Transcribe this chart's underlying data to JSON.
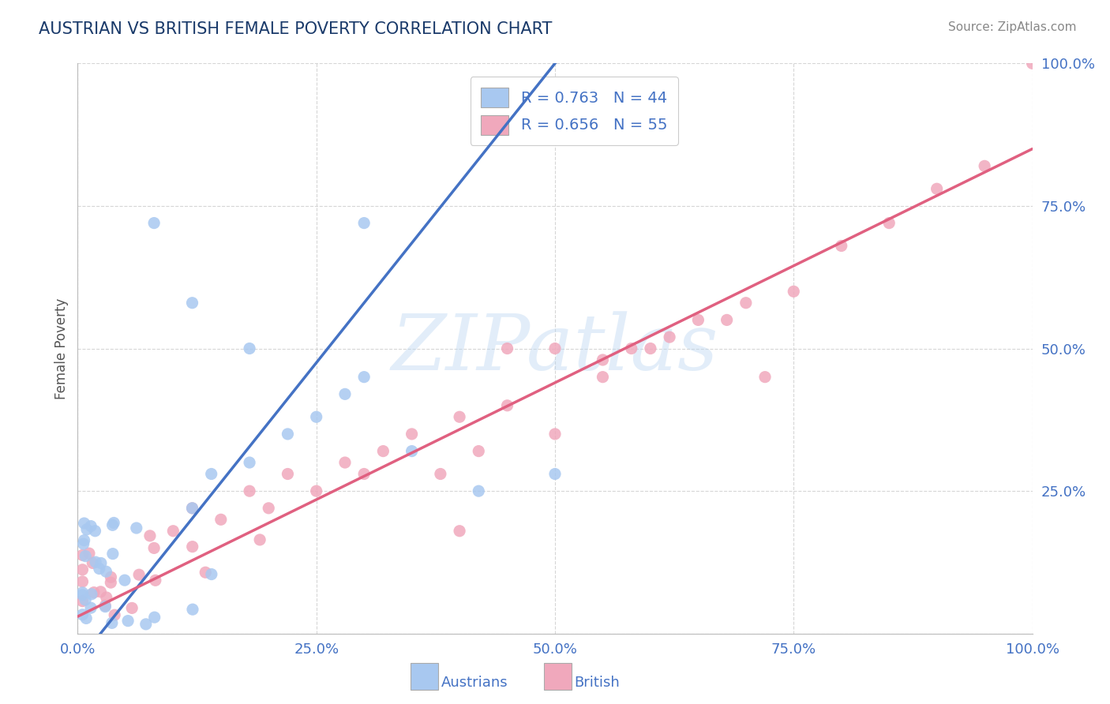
{
  "title": "AUSTRIAN VS BRITISH FEMALE POVERTY CORRELATION CHART",
  "source": "Source: ZipAtlas.com",
  "ylabel": "Female Poverty",
  "xlim": [
    0,
    1
  ],
  "ylim": [
    0,
    1
  ],
  "xticks": [
    0,
    0.25,
    0.5,
    0.75,
    1.0
  ],
  "yticks": [
    0,
    0.25,
    0.5,
    0.75,
    1.0
  ],
  "xtick_labels": [
    "0.0%",
    "25.0%",
    "50.0%",
    "75.0%",
    "100.0%"
  ],
  "ytick_labels": [
    "",
    "25.0%",
    "50.0%",
    "75.0%",
    "100.0%"
  ],
  "blue_color": "#a8c8f0",
  "pink_color": "#f0a8bc",
  "blue_line_color": "#4472c4",
  "pink_line_color": "#e06080",
  "R_austrians": 0.763,
  "N_austrians": 44,
  "R_british": 0.656,
  "N_british": 55,
  "legend_label_austrians": "Austrians",
  "legend_label_british": "British",
  "watermark": "ZIPatlas",
  "title_color": "#1a3a6a",
  "axis_label_color": "#555555",
  "tick_color": "#4472c4",
  "background_color": "#ffffff",
  "grid_color": "#cccccc",
  "blue_line_slope": 2.1,
  "blue_line_intercept": -0.05,
  "pink_line_slope": 0.82,
  "pink_line_intercept": 0.03
}
